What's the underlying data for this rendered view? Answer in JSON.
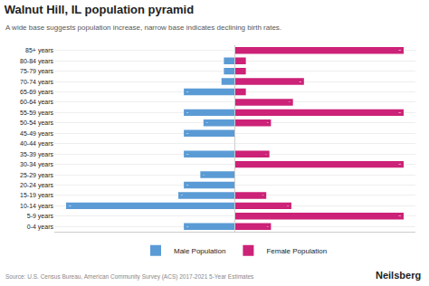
{
  "chart_data": {
    "type": "bar",
    "orientation": "horizontal",
    "title": "Walnut Hill, IL population pyramid",
    "subtitle": "A wide base suggests population increase, narrow base indicates declining birth rates.",
    "source": "Source: U.S. Census Bureau, American Community Survey (ACS) 2017-2021 5-Year Estimates",
    "branding": "Neilsberg",
    "categories": [
      "0-4 years",
      "5-9 years",
      "10-14 years",
      "15-19 years",
      "20-24 years",
      "25-29 years",
      "30-34 years",
      "35-39 years",
      "40-44 years",
      "45-49 years",
      "50-54 years",
      "55-59 years",
      "60-64 years",
      "65-69 years",
      "70-74 years",
      "75-79 years",
      "80-84 years",
      "85+ years"
    ],
    "series": [
      {
        "name": "Male Population",
        "color": "#5b9bd5",
        "values": [
          65,
          0,
          215,
          72,
          65,
          44,
          0,
          65,
          0,
          65,
          40,
          65,
          0,
          65,
          17,
          14,
          14,
          0
        ],
        "value_labels": [
          "65",
          null,
          "215",
          "72",
          "65",
          "44",
          null,
          "65",
          null,
          "65",
          "40",
          "65",
          null,
          "65",
          null,
          null,
          null,
          null
        ]
      },
      {
        "name": "Female Population",
        "color": "#cc2277",
        "values": [
          46,
          215,
          72,
          40,
          0,
          0,
          215,
          44,
          0,
          0,
          46,
          215,
          74,
          14,
          88,
          14,
          14,
          215
        ],
        "value_labels": [
          "46",
          "215",
          "72",
          "40",
          null,
          null,
          "215",
          "44",
          null,
          null,
          "46",
          "215",
          "74",
          null,
          "88",
          null,
          null,
          "215"
        ]
      }
    ],
    "xlim": [
      -230,
      230
    ],
    "tick_labels": "y",
    "data_labels": true,
    "grid": true,
    "legend": "bottom"
  }
}
